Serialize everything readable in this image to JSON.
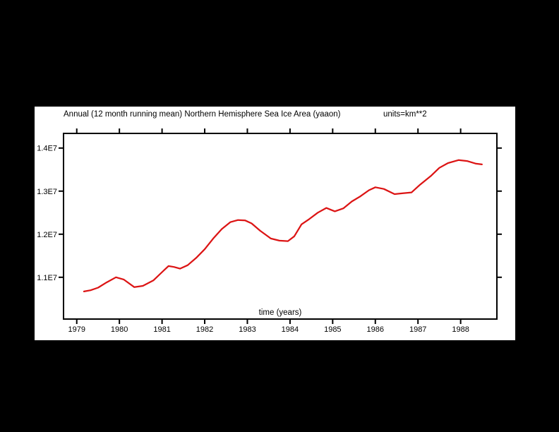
{
  "window": {
    "background_color": "#000000",
    "panel_color": "#ffffff",
    "frame_color": "#000000"
  },
  "chart_data": {
    "type": "line",
    "title": "Annual (12 month running mean) Northern Hemisphere Sea Ice Area (yaaon)",
    "units_label": "units=km**2",
    "xlabel": "time (years)",
    "ylabel": "",
    "grid": false,
    "legend": "none",
    "line_color": "#dc1414",
    "xlim": [
      1978.69,
      1988.85
    ],
    "ylim": [
      10030000,
      14340000
    ],
    "x_ticks": [
      1979,
      1980,
      1981,
      1982,
      1983,
      1984,
      1985,
      1986,
      1987,
      1988
    ],
    "y_ticks": [
      {
        "value": 11000000,
        "label": "1.1E7"
      },
      {
        "value": 12000000,
        "label": "1.2E7"
      },
      {
        "value": 13000000,
        "label": "1.3E7"
      },
      {
        "value": 14000000,
        "label": "1.4E7"
      }
    ],
    "series": [
      {
        "name": "Northern Hemisphere Sea Ice Area (12 month running mean)",
        "points": [
          [
            1979.17,
            10670000
          ],
          [
            1979.33,
            10700000
          ],
          [
            1979.5,
            10760000
          ],
          [
            1979.7,
            10880000
          ],
          [
            1979.92,
            11000000
          ],
          [
            1980.1,
            10950000
          ],
          [
            1980.35,
            10770000
          ],
          [
            1980.55,
            10800000
          ],
          [
            1980.8,
            10930000
          ],
          [
            1981.0,
            11120000
          ],
          [
            1981.15,
            11260000
          ],
          [
            1981.28,
            11240000
          ],
          [
            1981.42,
            11200000
          ],
          [
            1981.6,
            11280000
          ],
          [
            1981.8,
            11450000
          ],
          [
            1982.0,
            11650000
          ],
          [
            1982.2,
            11900000
          ],
          [
            1982.4,
            12120000
          ],
          [
            1982.6,
            12280000
          ],
          [
            1982.78,
            12330000
          ],
          [
            1982.95,
            12320000
          ],
          [
            1983.1,
            12250000
          ],
          [
            1983.3,
            12080000
          ],
          [
            1983.55,
            11900000
          ],
          [
            1983.75,
            11850000
          ],
          [
            1983.95,
            11840000
          ],
          [
            1984.1,
            11950000
          ],
          [
            1984.27,
            12230000
          ],
          [
            1984.45,
            12350000
          ],
          [
            1984.65,
            12500000
          ],
          [
            1984.85,
            12610000
          ],
          [
            1985.05,
            12530000
          ],
          [
            1985.25,
            12600000
          ],
          [
            1985.45,
            12760000
          ],
          [
            1985.65,
            12880000
          ],
          [
            1985.85,
            13020000
          ],
          [
            1986.0,
            13090000
          ],
          [
            1986.2,
            13050000
          ],
          [
            1986.45,
            12930000
          ],
          [
            1986.65,
            12950000
          ],
          [
            1986.85,
            12970000
          ],
          [
            1987.05,
            13150000
          ],
          [
            1987.3,
            13350000
          ],
          [
            1987.5,
            13540000
          ],
          [
            1987.7,
            13650000
          ],
          [
            1987.95,
            13720000
          ],
          [
            1988.15,
            13700000
          ],
          [
            1988.35,
            13640000
          ],
          [
            1988.5,
            13620000
          ]
        ]
      }
    ]
  }
}
